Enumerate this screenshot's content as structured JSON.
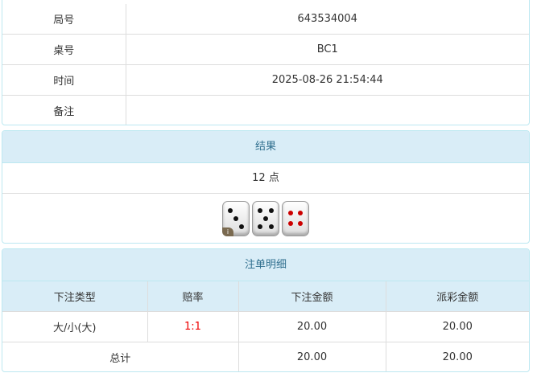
{
  "info": {
    "rows": [
      {
        "label": "局号",
        "value": "643534004"
      },
      {
        "label": "桌号",
        "value": "BC1"
      },
      {
        "label": "时间",
        "value": "2025-08-26 21:54:44"
      },
      {
        "label": "备注",
        "value": ""
      }
    ]
  },
  "result": {
    "title": "结果",
    "points": "12 点",
    "dice": [
      3,
      5,
      4
    ],
    "info_badge": "i"
  },
  "bets": {
    "title": "注单明细",
    "headers": [
      "下注类型",
      "赔率",
      "下注金额",
      "派彩金额"
    ],
    "rows": [
      {
        "type": "大/小(大)",
        "odds": "1:1",
        "amount": "20.00",
        "payout": "20.00"
      }
    ],
    "total": {
      "label": "总计",
      "amount": "20.00",
      "payout": "20.00"
    }
  },
  "colors": {
    "header_bg": "#d9edf7",
    "header_text": "#31708f",
    "odds": "#ee0000"
  }
}
